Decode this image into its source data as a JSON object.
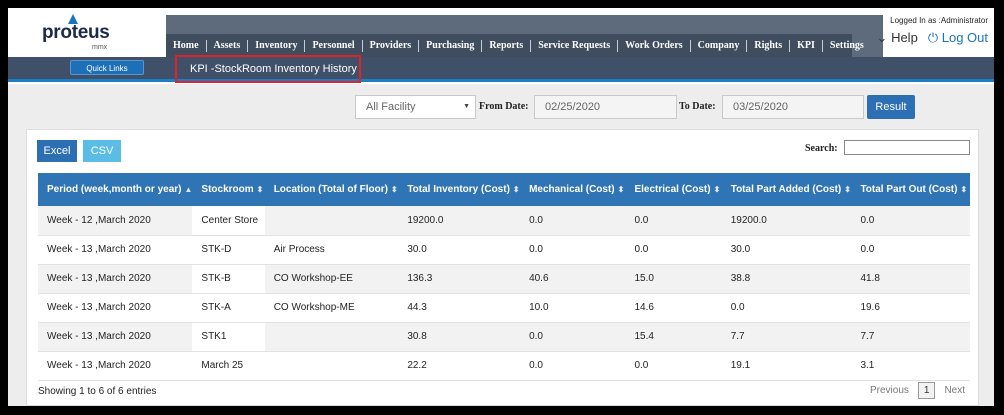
{
  "brand": {
    "logo_text": "proteus",
    "logo_sub": "mmx"
  },
  "nav": [
    "Home",
    "Assets",
    "Inventory",
    "Personnel",
    "Providers",
    "Purchasing",
    "Reports",
    "Service Requests",
    "Work Orders",
    "Company",
    "Rights",
    "KPI",
    "Settings"
  ],
  "user": {
    "logged_in": "Logged In as :Administrator",
    "help": "Help",
    "logout": "Log Out",
    "help_icon": "chevron-down-icon",
    "logout_icon": "power-icon"
  },
  "subbar": {
    "quick_links": "Quick Links",
    "breadcrumb": "KPI -StockRoom Inventory History"
  },
  "filter": {
    "facility": "All Facility",
    "from_label": "From Date:",
    "from_date": "02/25/2020",
    "to_label": "To Date:",
    "to_date": "03/25/2020",
    "result": "Result"
  },
  "toolbar": {
    "excel": "Excel",
    "csv": "CSV",
    "search_label": "Search:"
  },
  "table": {
    "columns": [
      "Period (week,month or year)",
      "Stockroom",
      "Location (Total of Floor)",
      "Total Inventory (Cost)",
      "Mechanical (Cost)",
      "Electrical (Cost)",
      "Total Part Added (Cost)",
      "Total Part Out (Cost)"
    ],
    "rows": [
      [
        "Week - 12 ,March 2020",
        "Center Store",
        "",
        "19200.0",
        "0.0",
        "0.0",
        "19200.0",
        "0.0"
      ],
      [
        "Week - 13 ,March 2020",
        "STK-D",
        "Air Process",
        "30.0",
        "0.0",
        "0.0",
        "30.0",
        "0.0"
      ],
      [
        "Week - 13 ,March 2020",
        "STK-B",
        "CO Workshop-EE",
        "136.3",
        "40.6",
        "15.0",
        "38.8",
        "41.8"
      ],
      [
        "Week - 13 ,March 2020",
        "STK-A",
        "CO Workshop-ME",
        "44.3",
        "10.0",
        "14.6",
        "0.0",
        "19.6"
      ],
      [
        "Week - 13 ,March 2020",
        "STK1",
        "",
        "30.8",
        "0.0",
        "15.4",
        "7.7",
        "7.7"
      ],
      [
        "Week - 13 ,March 2020",
        "March 25",
        "",
        "22.2",
        "0.0",
        "0.0",
        "19.1",
        "3.1"
      ]
    ]
  },
  "footer": {
    "info": "Showing 1 to 6 of 6 entries",
    "previous": "Previous",
    "page": "1",
    "next": "Next"
  },
  "colors": {
    "header_blue": "#2f74b5",
    "nav_dark": "#3f4d5e",
    "accent_red": "#e0222a"
  }
}
